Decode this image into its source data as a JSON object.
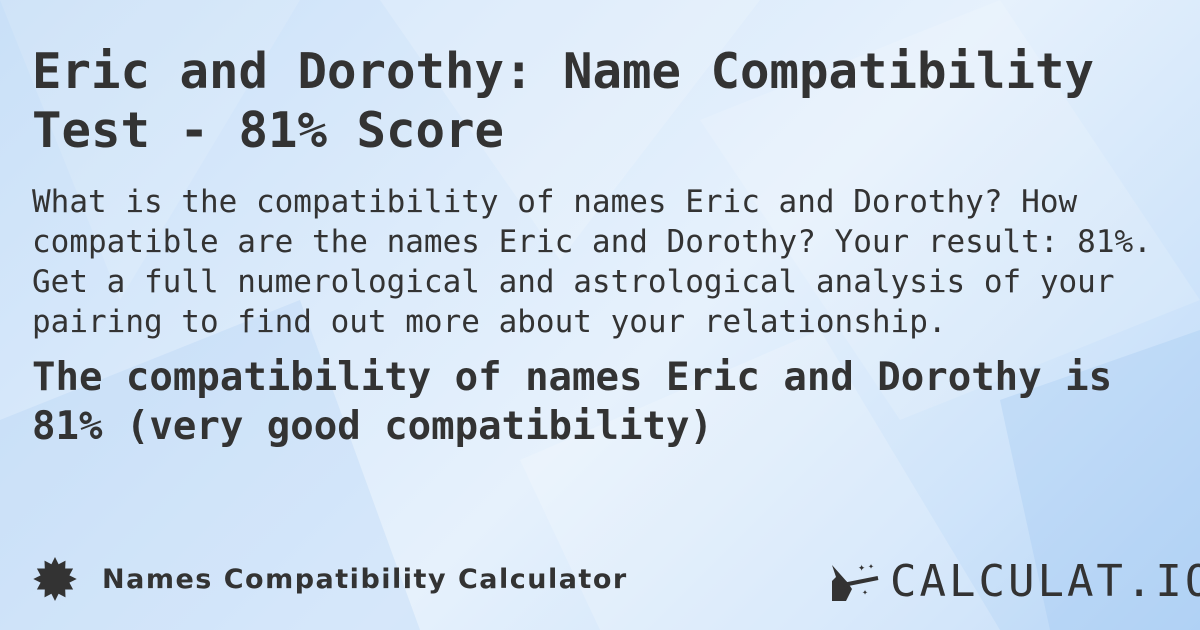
{
  "title": "Eric and Dorothy: Name Compatibility Test - 81% Score",
  "description": "What is the compatibility of names Eric and Dorothy? How compatible are the names Eric and Dorothy? Your result: 81%. Get a full numerological and astrological analysis of your pairing to find out more about your relationship.",
  "result": "The compatibility of names Eric and Dorothy is 81% (very good compatibility)",
  "footer": {
    "icon": "badge-icon",
    "label": "Names Compatibility Calculator"
  },
  "logo": {
    "text": "CALCULAT.IO",
    "icon": "magic-hand-icon"
  },
  "colors": {
    "text": "#333333",
    "background": "#dcebfb"
  }
}
